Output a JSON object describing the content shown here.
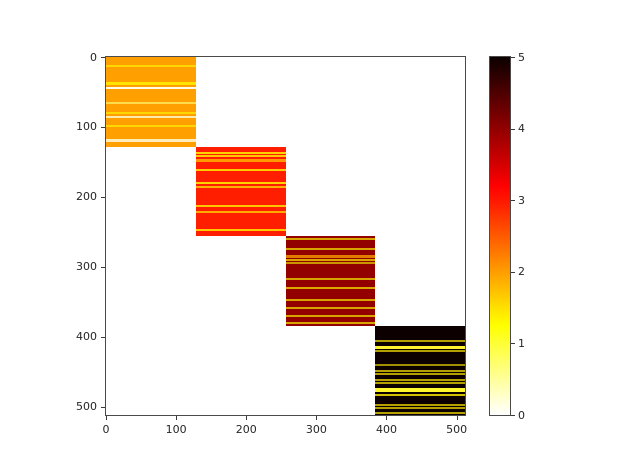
{
  "chart_data": {
    "type": "heatmap",
    "title": "",
    "xlabel": "",
    "ylabel": "",
    "x_range": [
      0,
      512
    ],
    "y_range": [
      0,
      512
    ],
    "y_inverted": true,
    "x_ticks": [
      0,
      100,
      200,
      300,
      400,
      500
    ],
    "y_ticks": [
      0,
      100,
      200,
      300,
      400,
      500
    ],
    "grid": false,
    "background_color": "#ffffff",
    "colormap": "hot_r",
    "colorbar": {
      "min": 0,
      "max": 5,
      "ticks": [
        0,
        1,
        2,
        3,
        4,
        5
      ],
      "position": "right",
      "gradient_stops": [
        {
          "pos": "0%",
          "color": "#ffffff"
        },
        {
          "pos": "10%",
          "color": "#ffff9b"
        },
        {
          "pos": "20%",
          "color": "#ffff36"
        },
        {
          "pos": "25%",
          "color": "#ffff00"
        },
        {
          "pos": "30%",
          "color": "#ffe000"
        },
        {
          "pos": "40%",
          "color": "#ff9d00"
        },
        {
          "pos": "50%",
          "color": "#ff5a00"
        },
        {
          "pos": "60%",
          "color": "#ff1700"
        },
        {
          "pos": "64%",
          "color": "#ff0000"
        },
        {
          "pos": "70%",
          "color": "#d40000"
        },
        {
          "pos": "80%",
          "color": "#910000"
        },
        {
          "pos": "90%",
          "color": "#4e0000"
        },
        {
          "pos": "100%",
          "color": "#0b0000"
        }
      ]
    },
    "blocks": [
      {
        "row_start": 0,
        "row_end": 128,
        "col_start": 0,
        "col_end": 128,
        "value": 2,
        "color": "#ffa000",
        "stripes": [
          {
            "row": 13,
            "color": "#ffd700",
            "px": 2
          },
          {
            "row": 38,
            "color": "#ffe400",
            "px": 3
          },
          {
            "row": 44,
            "color": "#fffbe8",
            "px": 2
          },
          {
            "row": 66,
            "color": "#ffdc4e",
            "px": 2
          },
          {
            "row": 80,
            "color": "#ffd700",
            "px": 2
          },
          {
            "row": 86,
            "color": "#ffeba8",
            "px": 2
          },
          {
            "row": 99,
            "color": "#ffd700",
            "px": 2
          },
          {
            "row": 120,
            "color": "#ffecb8",
            "px": 3
          }
        ]
      },
      {
        "row_start": 128,
        "row_end": 256,
        "col_start": 128,
        "col_end": 256,
        "value": 3,
        "color": "#ff1e00",
        "stripes": [
          {
            "row": 137,
            "color": "#ffd200",
            "px": 2
          },
          {
            "row": 142,
            "color": "#ffc800",
            "px": 2
          },
          {
            "row": 148,
            "color": "#ff9b00",
            "px": 3
          },
          {
            "row": 162,
            "color": "#ffcc00",
            "px": 2
          },
          {
            "row": 180,
            "color": "#ffd200",
            "px": 2
          },
          {
            "row": 186,
            "color": "#ffb000",
            "px": 2
          },
          {
            "row": 213,
            "color": "#ffc400",
            "px": 2
          },
          {
            "row": 222,
            "color": "#ffaa00",
            "px": 2
          },
          {
            "row": 248,
            "color": "#ffc800",
            "px": 2
          }
        ]
      },
      {
        "row_start": 256,
        "row_end": 384,
        "col_start": 256,
        "col_end": 384,
        "value": 4,
        "color": "#930000",
        "stripes": [
          {
            "row": 260,
            "color": "#d8a400",
            "px": 2
          },
          {
            "row": 275,
            "color": "#d8a400",
            "px": 2
          },
          {
            "row": 286,
            "color": "#e27d00",
            "px": 3
          },
          {
            "row": 290,
            "color": "#d8a400",
            "px": 2
          },
          {
            "row": 294,
            "color": "#c89600",
            "px": 2
          },
          {
            "row": 317,
            "color": "#d8a400",
            "px": 2
          },
          {
            "row": 330,
            "color": "#daa800",
            "px": 2
          },
          {
            "row": 347,
            "color": "#d8a400",
            "px": 2
          },
          {
            "row": 359,
            "color": "#d8a400",
            "px": 2
          },
          {
            "row": 370,
            "color": "#d8a400",
            "px": 2
          },
          {
            "row": 381,
            "color": "#d8a400",
            "px": 2
          }
        ]
      },
      {
        "row_start": 384,
        "row_end": 512,
        "col_start": 384,
        "col_end": 512,
        "value": 5,
        "color": "#0c0000",
        "stripes": [
          {
            "row": 406,
            "color": "#b4a000",
            "px": 2
          },
          {
            "row": 416,
            "color": "#fff22e",
            "px": 3
          },
          {
            "row": 420,
            "color": "#b4a000",
            "px": 2
          },
          {
            "row": 440,
            "color": "#a09000",
            "px": 2
          },
          {
            "row": 449,
            "color": "#b4a000",
            "px": 2
          },
          {
            "row": 453,
            "color": "#b4a000",
            "px": 2
          },
          {
            "row": 462,
            "color": "#b4a000",
            "px": 2
          },
          {
            "row": 466,
            "color": "#b4a000",
            "px": 2
          },
          {
            "row": 476,
            "color": "#fff62e",
            "px": 4
          },
          {
            "row": 483,
            "color": "#d2c000",
            "px": 2
          },
          {
            "row": 498,
            "color": "#b4a000",
            "px": 2
          },
          {
            "row": 502,
            "color": "#b4a000",
            "px": 2
          },
          {
            "row": 509,
            "color": "#b4a000",
            "px": 2
          }
        ]
      }
    ]
  }
}
